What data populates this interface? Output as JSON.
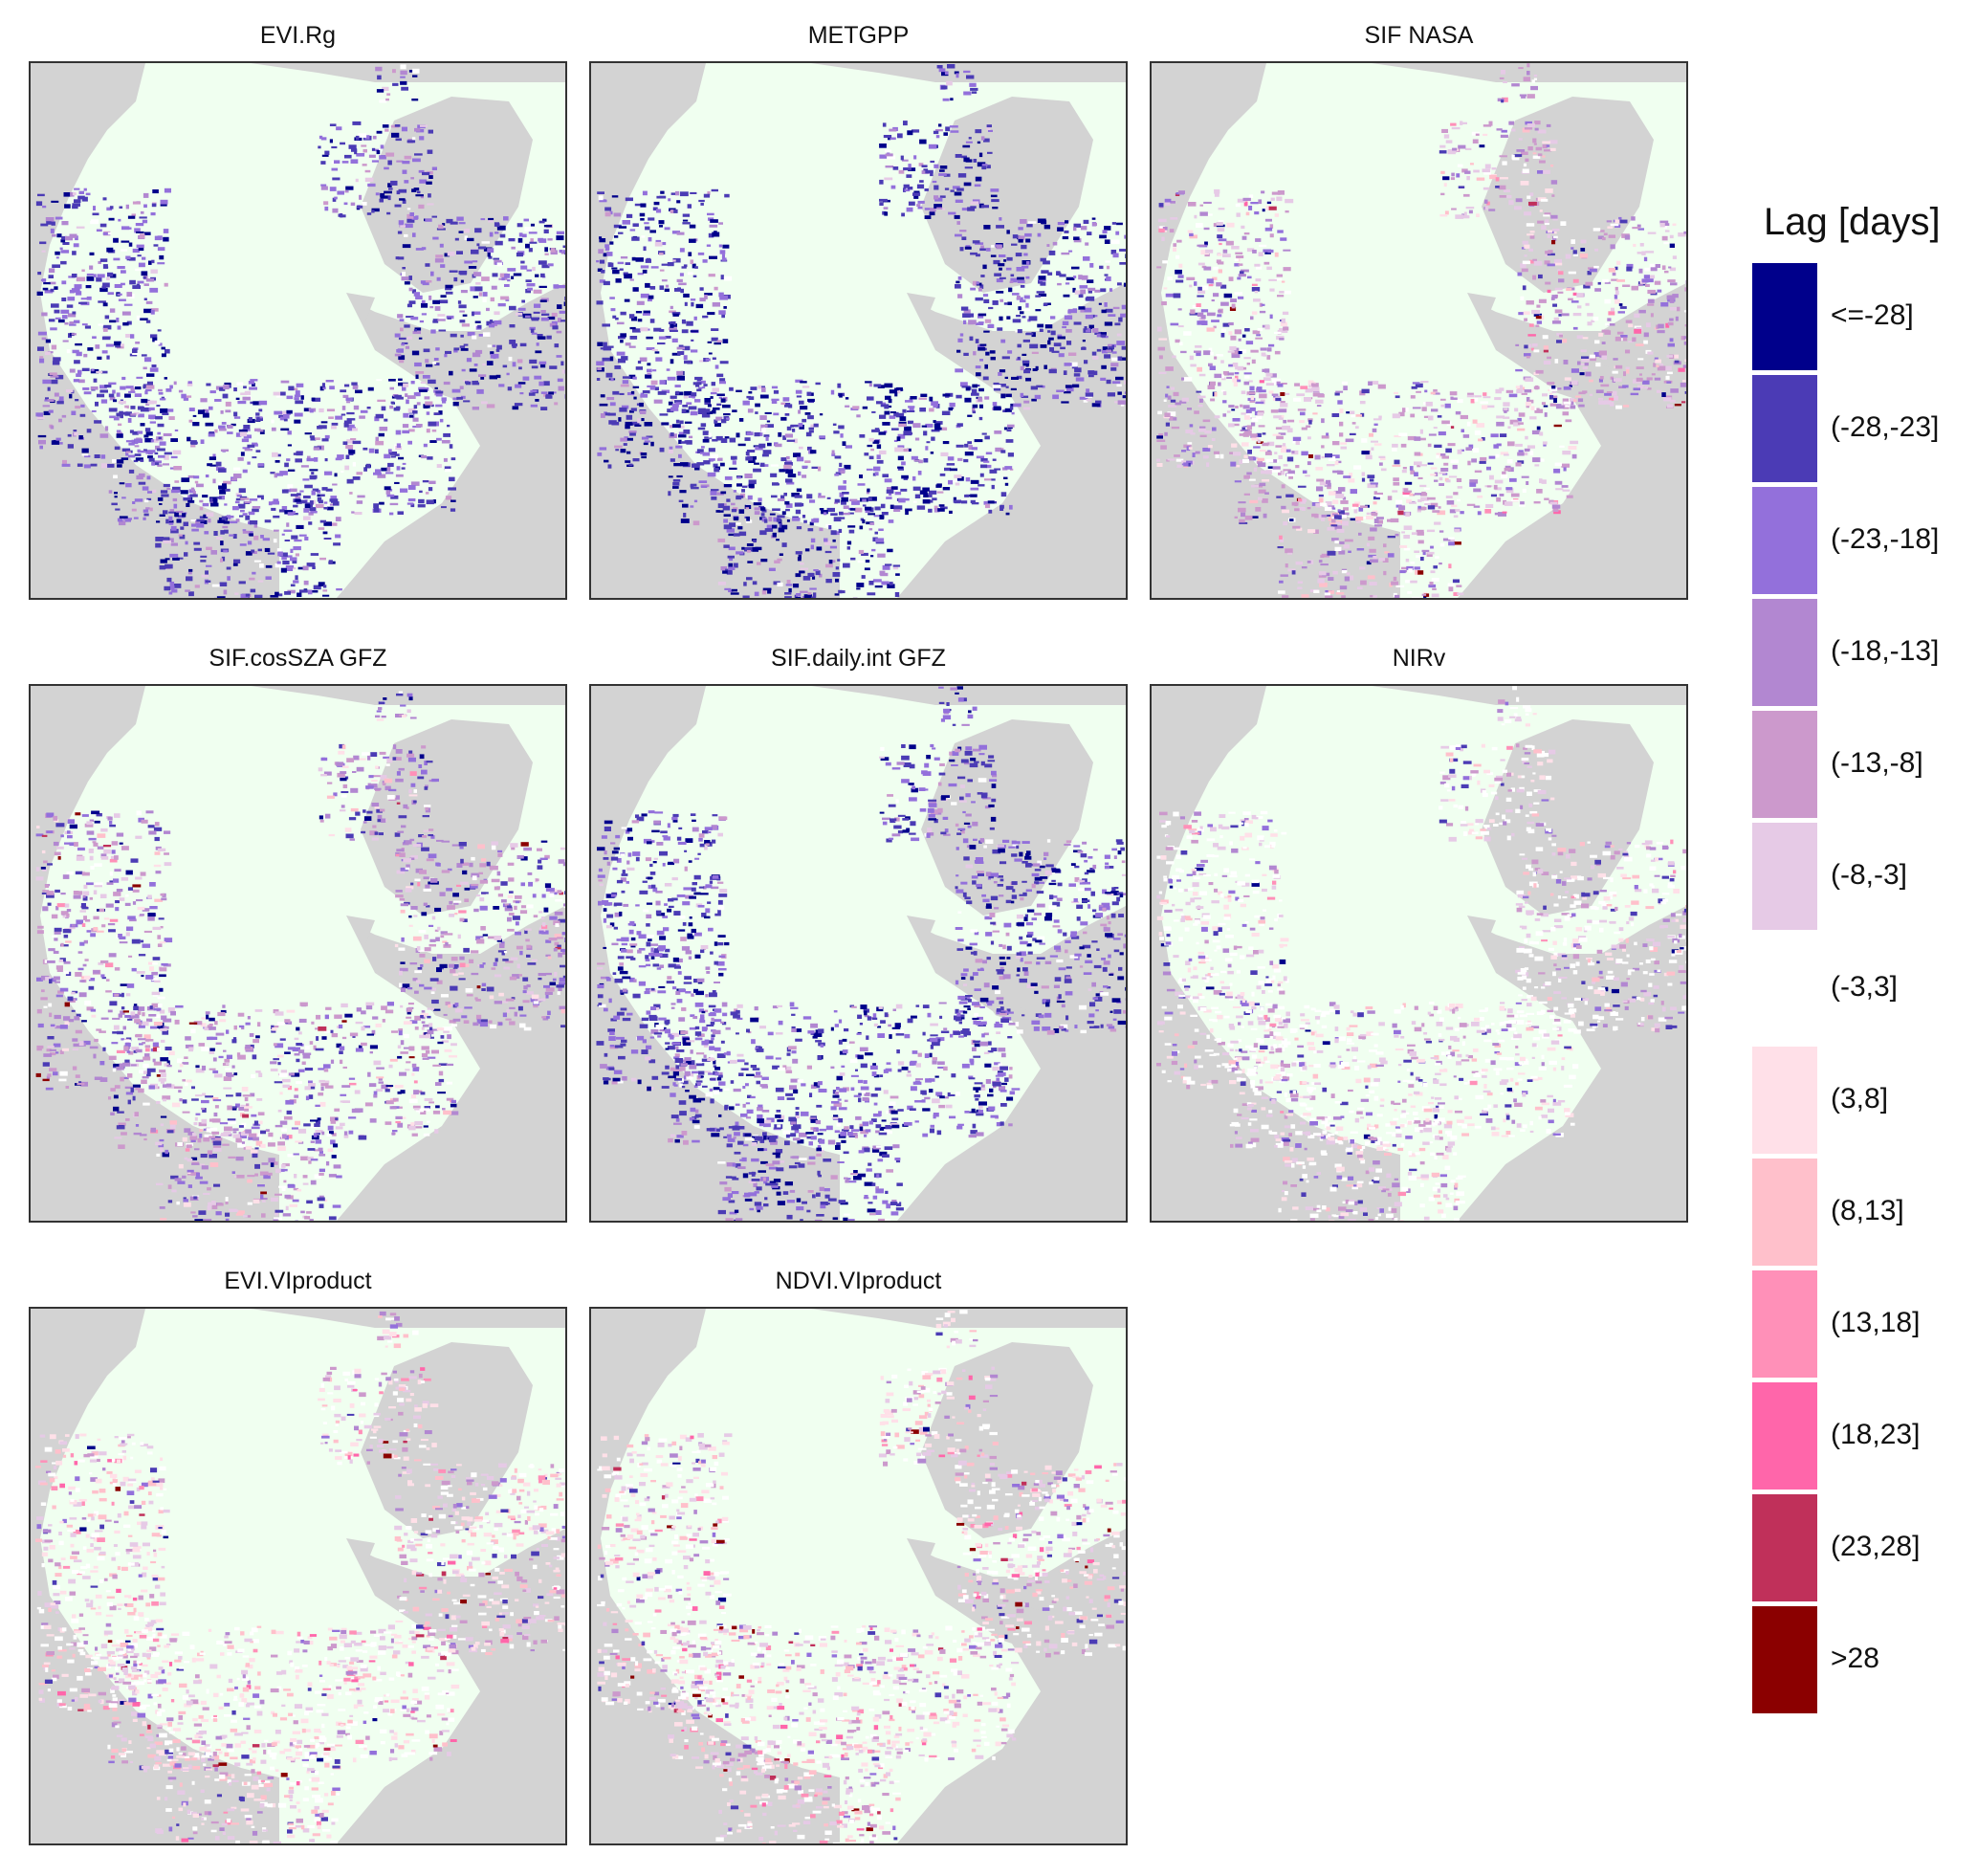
{
  "panels": [
    {
      "title": "EVI.Rg",
      "profile": "blue-strong"
    },
    {
      "title": "METGPP",
      "profile": "blue-strongest"
    },
    {
      "title": "SIF NASA",
      "profile": "mixed-light"
    },
    {
      "title": "SIF.cosSZA GFZ",
      "profile": "blue-medium"
    },
    {
      "title": "SIF.daily.int GFZ",
      "profile": "blue-strong"
    },
    {
      "title": "NIRv",
      "profile": "white-dominant"
    },
    {
      "title": "EVI.VIproduct",
      "profile": "pink-light"
    },
    {
      "title": "NDVI.VIproduct",
      "profile": "pink-light"
    }
  ],
  "legend": {
    "title": "Lag [days]",
    "bins": [
      {
        "label": "<=-28]",
        "color": "#00008B"
      },
      {
        "label": "(-28,-23]",
        "color": "#4B3BB5"
      },
      {
        "label": "(-23,-18]",
        "color": "#9370DB"
      },
      {
        "label": "(-18,-13]",
        "color": "#B287D1"
      },
      {
        "label": "(-13,-8]",
        "color": "#CC99CC"
      },
      {
        "label": "(-8,-3]",
        "color": "#E6CAE6"
      },
      {
        "label": "(-3,3]",
        "color": "#FFFFFF"
      },
      {
        "label": "(3,8]",
        "color": "#FFE0E8"
      },
      {
        "label": "(8,13]",
        "color": "#FFC0CB"
      },
      {
        "label": "(13,18]",
        "color": "#FF90B8"
      },
      {
        "label": "(18,23]",
        "color": "#FF66AA"
      },
      {
        "label": "(23,28]",
        "color": "#C0305A"
      },
      {
        "label": ">28",
        "color": "#8B0000"
      }
    ]
  },
  "map_colors": {
    "land": "#D3D3D3",
    "ocean": "#F0FFF0"
  }
}
